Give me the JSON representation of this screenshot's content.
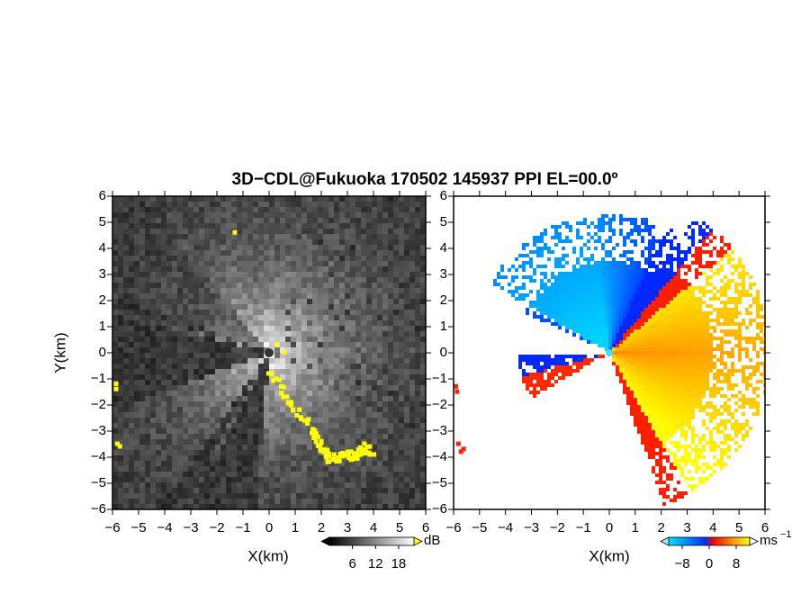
{
  "chart_data": [
    {
      "type": "image",
      "title": "3D−CDL@Fukuoka 170502 145937 PPI EL=00.0º",
      "xlabel": "X(km)",
      "ylabel": "Y(km)",
      "xlim": [
        -6,
        6
      ],
      "ylim": [
        -6,
        6
      ],
      "xticks": [
        {
          "value": -6,
          "label": "−6"
        },
        {
          "value": -5,
          "label": "−5"
        },
        {
          "value": -4,
          "label": "−4"
        },
        {
          "value": -3,
          "label": "−3"
        },
        {
          "value": -2,
          "label": "−2"
        },
        {
          "value": -1,
          "label": "−1"
        },
        0,
        1,
        2,
        3,
        4,
        5,
        6
      ],
      "yticks": [
        {
          "value": -6,
          "label": "−6"
        },
        {
          "value": -5,
          "label": "−5"
        },
        {
          "value": -4,
          "label": "−4"
        },
        {
          "value": -3,
          "label": "−3"
        },
        {
          "value": -2,
          "label": "−2"
        },
        {
          "value": -1,
          "label": "−1"
        },
        0,
        1,
        2,
        3,
        4,
        5,
        6
      ],
      "colorbar": {
        "clim": [
          0,
          22
        ],
        "ticks": [
          6,
          12,
          18
        ],
        "label": "dB"
      }
    },
    {
      "type": "image",
      "xlabel": "X(km)",
      "xlim": [
        -6,
        6
      ],
      "ylim": [
        -6,
        6
      ],
      "xticks": [
        {
          "value": -6,
          "label": "−6"
        },
        {
          "value": -5,
          "label": "−5"
        },
        {
          "value": -4,
          "label": "−4"
        },
        {
          "value": -3,
          "label": "−3"
        },
        {
          "value": -2,
          "label": "−2"
        },
        {
          "value": -1,
          "label": "−1"
        },
        0,
        1,
        2,
        3,
        4,
        5,
        6
      ],
      "yticks": [
        {
          "value": -6,
          "label": "−6"
        },
        {
          "value": -5,
          "label": "−5"
        },
        {
          "value": -4,
          "label": "−4"
        },
        {
          "value": -3,
          "label": "−3"
        },
        {
          "value": -2,
          "label": "−2"
        },
        {
          "value": -1,
          "label": "−1"
        },
        0,
        1,
        2,
        3,
        4,
        5,
        6
      ],
      "colorbar": {
        "clim": [
          -12,
          12
        ],
        "ticks": [
          {
            "value": -8,
            "label": "−8"
          },
          0,
          8
        ],
        "label": "ms",
        "label_superscript": "−1"
      }
    }
  ]
}
